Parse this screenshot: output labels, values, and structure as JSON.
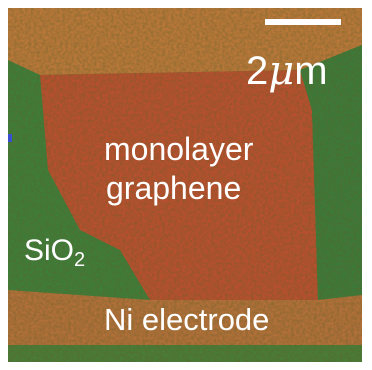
{
  "scale_bar": {
    "number": "2",
    "unit_prefix": "μ",
    "unit": "m"
  },
  "labels": {
    "layer": [
      "monolayer",
      "graphene"
    ],
    "substrate": {
      "text": "SiO",
      "subscript": "2"
    },
    "electrode": "Ni electrode"
  }
}
